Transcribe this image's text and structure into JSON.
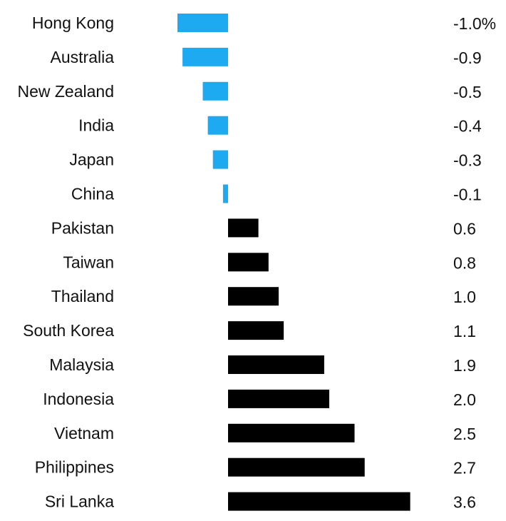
{
  "chart_data": {
    "type": "bar",
    "orientation": "horizontal",
    "title": "",
    "xlabel": "",
    "ylabel": "",
    "categories": [
      "Hong Kong",
      "Australia",
      "New Zealand",
      "India",
      "Japan",
      "China",
      "Pakistan",
      "Taiwan",
      "Thailand",
      "South Korea",
      "Malaysia",
      "Indonesia",
      "Vietnam",
      "Philippines",
      "Sri Lanka"
    ],
    "values": [
      -1.0,
      -0.9,
      -0.5,
      -0.4,
      -0.3,
      -0.1,
      0.6,
      0.8,
      1.0,
      1.1,
      1.9,
      2.0,
      2.5,
      2.7,
      3.6
    ],
    "value_labels": [
      "-1.0%",
      "-0.9",
      "-0.5",
      "-0.4",
      "-0.3",
      "-0.1",
      "0.6",
      "0.8",
      "1.0",
      "1.1",
      "1.9",
      "2.0",
      "2.5",
      "2.7",
      "3.6"
    ],
    "xlim": [
      -1.0,
      3.6
    ],
    "grid": false,
    "legend": "none",
    "colors": {
      "negative": "#1eaaf1",
      "positive": "#000000"
    }
  }
}
